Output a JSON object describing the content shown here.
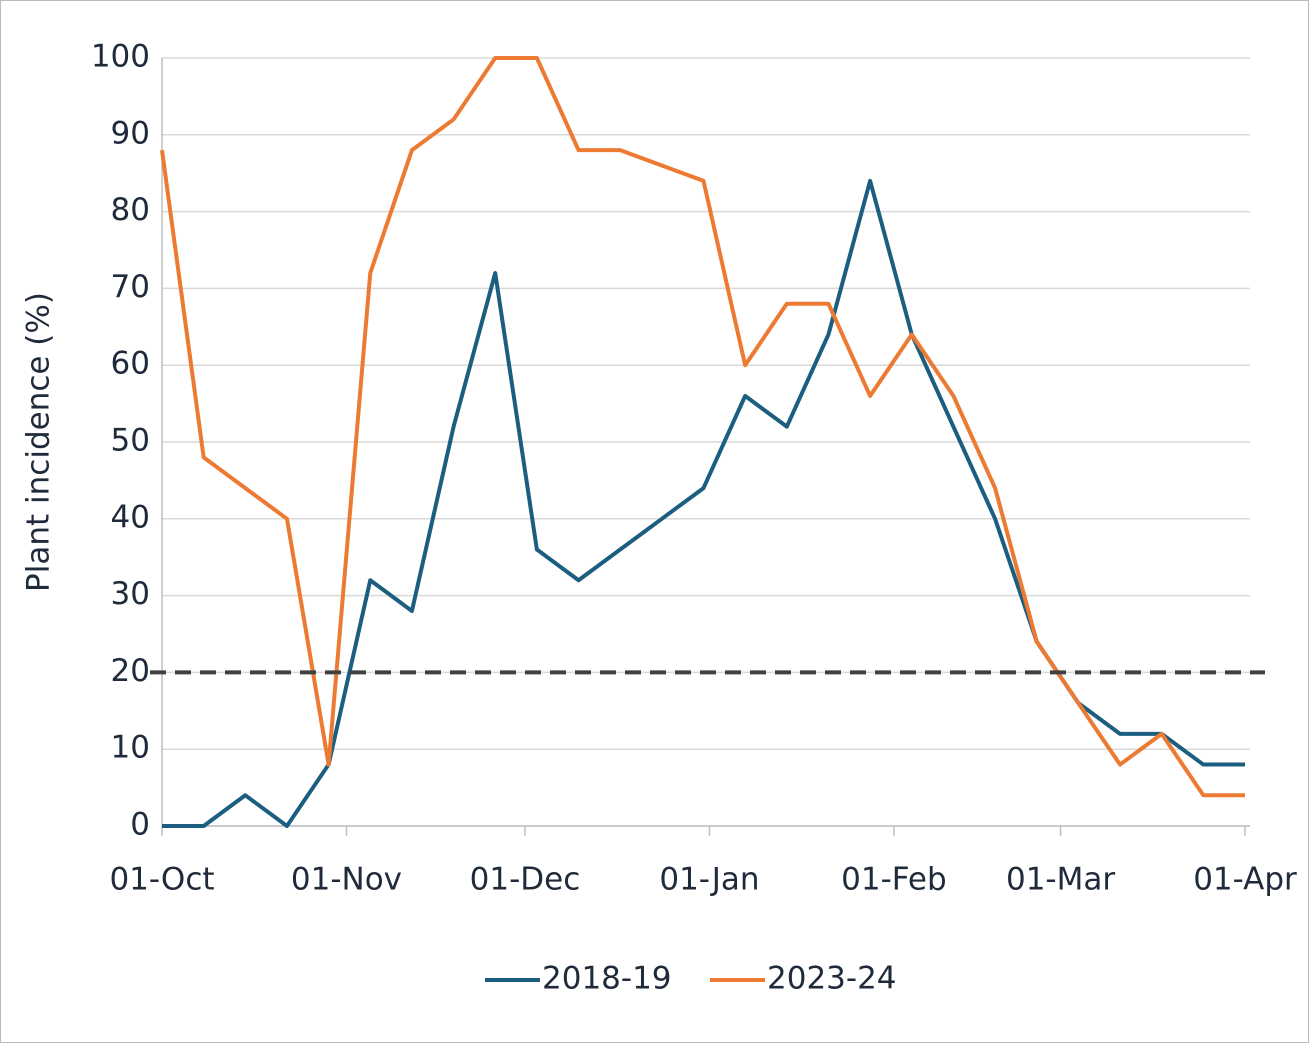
{
  "chart_data": {
    "type": "line",
    "y_label": "Plant incidence (%)",
    "x": [
      0,
      7,
      14,
      21,
      28,
      35,
      42,
      49,
      56,
      63,
      70,
      77,
      84,
      91,
      98,
      105,
      112,
      119,
      126,
      133,
      140,
      147,
      154,
      161,
      168,
      175,
      182
    ],
    "xlim": [
      0,
      182
    ],
    "xticks": [
      {
        "value": 0,
        "label": "01-Oct"
      },
      {
        "value": 31,
        "label": "01-Nov"
      },
      {
        "value": 61,
        "label": "01-Dec"
      },
      {
        "value": 92,
        "label": "01-Jan"
      },
      {
        "value": 123,
        "label": "01-Feb"
      },
      {
        "value": 151,
        "label": "01-Mar"
      },
      {
        "value": 182,
        "label": "01-Apr"
      }
    ],
    "ylim": [
      0,
      100
    ],
    "yticks": [
      0,
      10,
      20,
      30,
      40,
      50,
      60,
      70,
      80,
      90,
      100
    ],
    "grid": true,
    "threshold": 20,
    "legend": "bottom",
    "series": [
      {
        "name": "2018-19",
        "color": "#1b5e7f",
        "values": [
          0,
          0,
          4,
          0,
          8,
          32,
          28,
          52,
          72,
          36,
          32,
          36,
          40,
          44,
          56,
          52,
          64,
          84,
          64,
          52,
          40,
          24,
          16,
          12,
          12,
          8,
          8
        ]
      },
      {
        "name": "2023-24",
        "color": "#ec7a33",
        "values": [
          88,
          48,
          44,
          40,
          8,
          72,
          88,
          92,
          100,
          100,
          88,
          88,
          86,
          84,
          60,
          68,
          68,
          56,
          64,
          56,
          44,
          24,
          16,
          8,
          12,
          4,
          4
        ]
      }
    ]
  }
}
